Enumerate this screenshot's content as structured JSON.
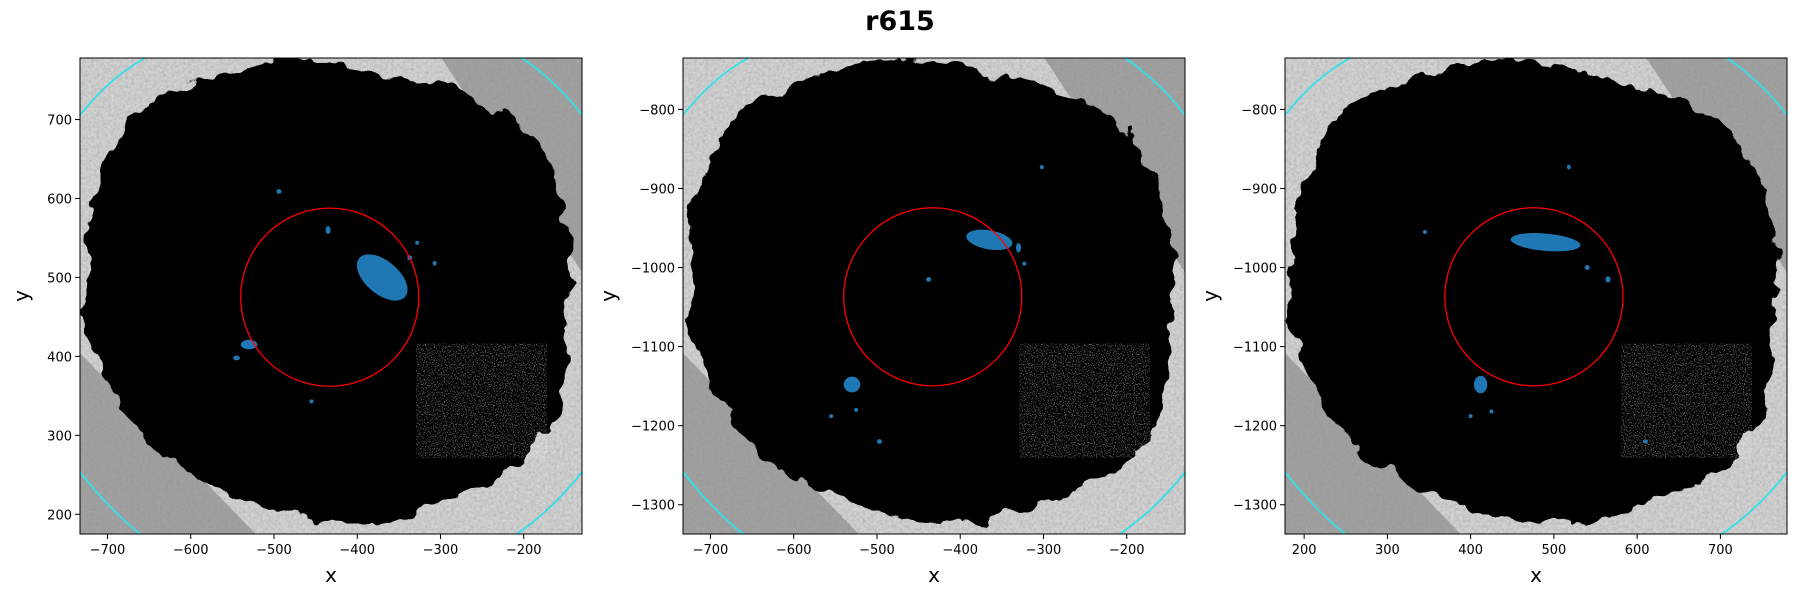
{
  "figure": {
    "title": "r615"
  },
  "colors": {
    "points": "#000000",
    "highlight": "#1f77b4",
    "circle": "#ff0000",
    "arc": "#33e0e8",
    "background_gray": "#8c8c8c"
  },
  "chart_data": [
    {
      "type": "scatter",
      "title": "",
      "xlabel": "x",
      "ylabel": "y",
      "xlim": [
        -733,
        -130
      ],
      "ylim": [
        175,
        778
      ],
      "xticks": [
        -700,
        -600,
        -500,
        -400,
        -300,
        -200
      ],
      "yticks": [
        200,
        300,
        400,
        500,
        600,
        700
      ],
      "circle": {
        "cx": -433,
        "cy": 475,
        "r": 107
      },
      "highlight_clusters": [
        {
          "x": -370,
          "y": 500,
          "rx": 20,
          "ry": 38,
          "rot": -50
        },
        {
          "x": -530,
          "y": 415,
          "rx": 10,
          "ry": 6,
          "rot": 0
        },
        {
          "x": -545,
          "y": 398,
          "rx": 4,
          "ry": 3,
          "rot": 0
        },
        {
          "x": -435,
          "y": 560,
          "rx": 3,
          "ry": 5,
          "rot": 0
        },
        {
          "x": -494,
          "y": 609,
          "rx": 3,
          "ry": 3,
          "rot": 0
        },
        {
          "x": -328,
          "y": 544,
          "rx": 2,
          "ry": 2,
          "rot": 0
        },
        {
          "x": -307,
          "y": 518,
          "rx": 2,
          "ry": 3,
          "rot": 0
        },
        {
          "x": -337,
          "y": 525,
          "rx": 3,
          "ry": 3,
          "rot": 0
        },
        {
          "x": -455,
          "y": 343,
          "rx": 2,
          "ry": 2,
          "rot": 0
        }
      ]
    },
    {
      "type": "scatter",
      "title": "",
      "xlabel": "x",
      "ylabel": "y",
      "xlim": [
        -733,
        -130
      ],
      "ylim": [
        -1337,
        -735
      ],
      "xticks": [
        -700,
        -600,
        -500,
        -400,
        -300,
        -200
      ],
      "yticks": [
        -1300,
        -1200,
        -1100,
        -1000,
        -900,
        -800
      ],
      "circle": {
        "cx": -433,
        "cy": -1037,
        "r": 107
      },
      "highlight_clusters": [
        {
          "x": -365,
          "y": -965,
          "rx": 28,
          "ry": 12,
          "rot": 10
        },
        {
          "x": -530,
          "y": -1148,
          "rx": 10,
          "ry": 10,
          "rot": 0
        },
        {
          "x": -438,
          "y": -1015,
          "rx": 3,
          "ry": 3,
          "rot": 0
        },
        {
          "x": -302,
          "y": -873,
          "rx": 2,
          "ry": 2,
          "rot": 0
        },
        {
          "x": -497,
          "y": -1220,
          "rx": 3,
          "ry": 3,
          "rot": 0
        },
        {
          "x": -555,
          "y": -1188,
          "rx": 2,
          "ry": 2,
          "rot": 0
        },
        {
          "x": -330,
          "y": -975,
          "rx": 3,
          "ry": 6,
          "rot": 0
        },
        {
          "x": -323,
          "y": -995,
          "rx": 2,
          "ry": 2,
          "rot": 0
        },
        {
          "x": -525,
          "y": -1180,
          "rx": 2,
          "ry": 2,
          "rot": 0
        }
      ]
    },
    {
      "type": "scatter",
      "title": "",
      "xlabel": "x",
      "ylabel": "y",
      "xlim": [
        177,
        780
      ],
      "ylim": [
        -1337,
        -735
      ],
      "xticks": [
        200,
        300,
        400,
        500,
        600,
        700
      ],
      "yticks": [
        -1300,
        -1200,
        -1100,
        -1000,
        -900,
        -800
      ],
      "circle": {
        "cx": 476,
        "cy": -1037,
        "r": 107
      },
      "highlight_clusters": [
        {
          "x": 490,
          "y": -968,
          "rx": 42,
          "ry": 11,
          "rot": 5
        },
        {
          "x": 412,
          "y": -1148,
          "rx": 8,
          "ry": 11,
          "rot": 0
        },
        {
          "x": 518,
          "y": -873,
          "rx": 2,
          "ry": 3,
          "rot": 0
        },
        {
          "x": 610,
          "y": -1220,
          "rx": 3,
          "ry": 2,
          "rot": 0
        },
        {
          "x": 565,
          "y": -1015,
          "rx": 3,
          "ry": 4,
          "rot": 0
        },
        {
          "x": 400,
          "y": -1188,
          "rx": 2,
          "ry": 2,
          "rot": 0
        },
        {
          "x": 425,
          "y": -1182,
          "rx": 2,
          "ry": 2,
          "rot": 0
        },
        {
          "x": 345,
          "y": -955,
          "rx": 2,
          "ry": 2,
          "rot": 0
        },
        {
          "x": 540,
          "y": -1000,
          "rx": 3,
          "ry": 3,
          "rot": 0
        }
      ]
    }
  ]
}
